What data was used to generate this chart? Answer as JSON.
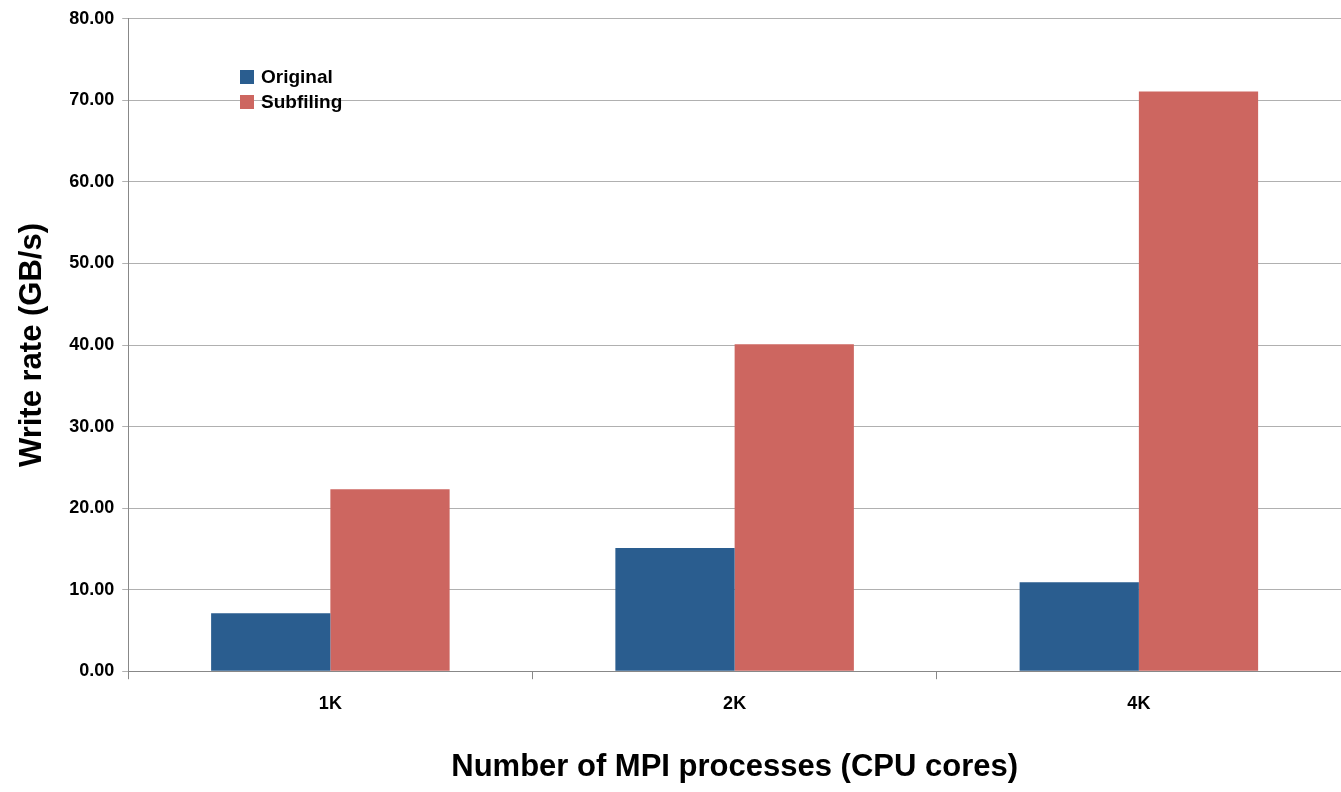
{
  "chart_data": {
    "type": "bar",
    "xlabel": "Number of MPI processes (CPU cores)",
    "ylabel": "Write rate (GB/s)",
    "categories": [
      "1K",
      "2K",
      "4K"
    ],
    "series": [
      {
        "name": "Original",
        "color": "#2a5d8f",
        "values": [
          7.1,
          15.1,
          10.9
        ]
      },
      {
        "name": "Subfiling",
        "color": "#cd6660",
        "values": [
          22.3,
          40.1,
          71.1
        ]
      }
    ],
    "ylim": [
      0,
      80
    ],
    "yticks": [
      {
        "value": 0,
        "label": "0.00"
      },
      {
        "value": 10,
        "label": "10.00"
      },
      {
        "value": 20,
        "label": "20.00"
      },
      {
        "value": 30,
        "label": "30.00"
      },
      {
        "value": 40,
        "label": "40.00"
      },
      {
        "value": 50,
        "label": "50.00"
      },
      {
        "value": 60,
        "label": "60.00"
      },
      {
        "value": 70,
        "label": "70.00"
      },
      {
        "value": 80,
        "label": "80.00"
      }
    ],
    "grid": "y",
    "legend": "top left"
  }
}
